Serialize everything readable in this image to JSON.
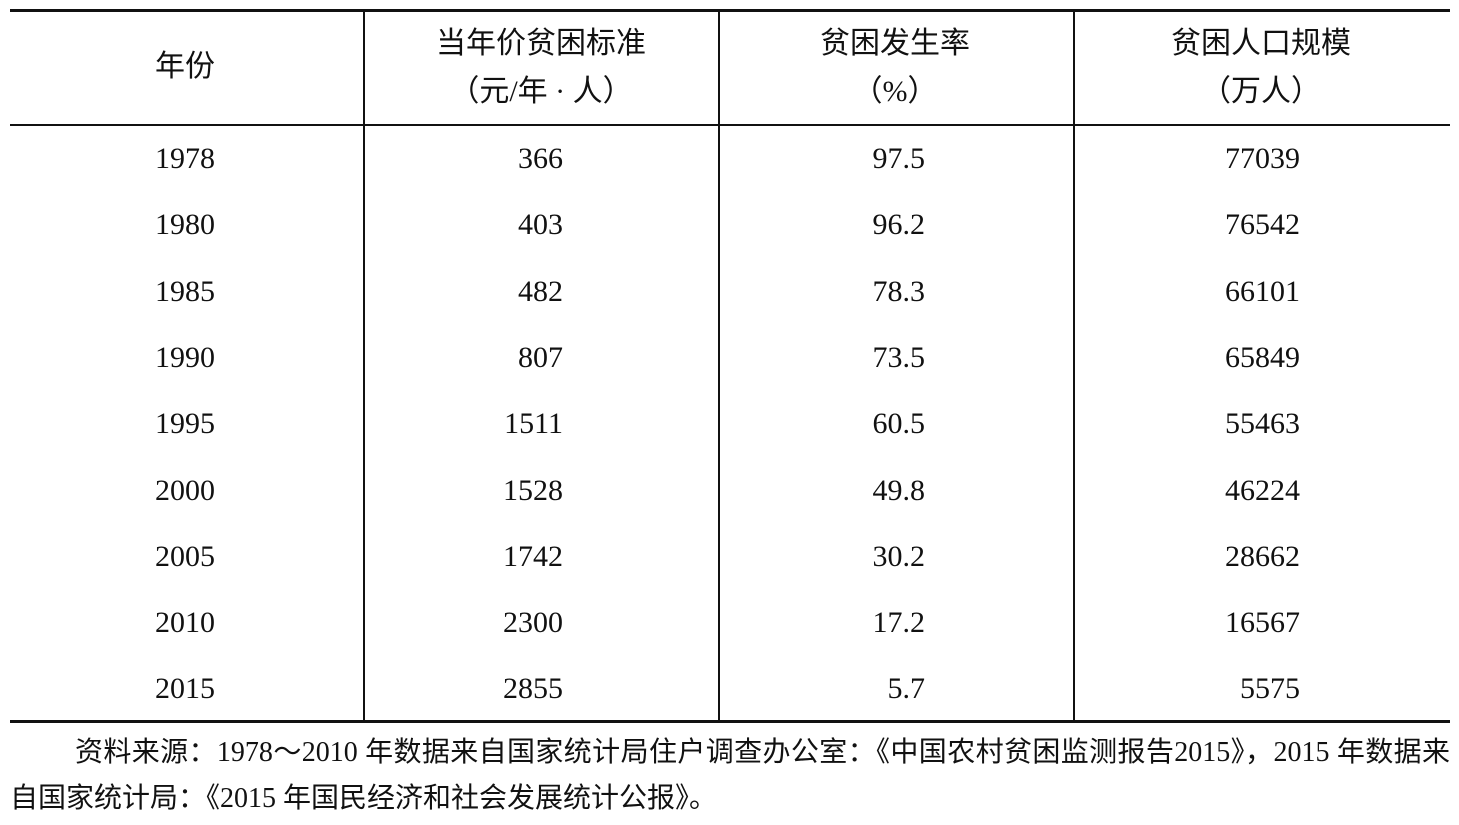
{
  "table": {
    "header": [
      [
        "年份"
      ],
      [
        "当年价贫困标准",
        "（元/年 · 人）"
      ],
      [
        "贫困发生率",
        "（%）"
      ],
      [
        "贫困人口规模",
        "（万人）"
      ]
    ],
    "rows": [
      [
        1978,
        366,
        97.5,
        77039
      ],
      [
        1980,
        403,
        96.2,
        76542
      ],
      [
        1985,
        482,
        78.3,
        66101
      ],
      [
        1990,
        807,
        73.5,
        65849
      ],
      [
        1995,
        1511,
        60.5,
        55463
      ],
      [
        2000,
        1528,
        49.8,
        46224
      ],
      [
        2005,
        1742,
        30.2,
        28662
      ],
      [
        2010,
        2300,
        17.2,
        16567
      ],
      [
        2015,
        2855,
        5.7,
        5575
      ]
    ]
  },
  "note": "资料来源：1978～2010 年数据来自国家统计局住户调查办公室：《中国农村贫困监测报告2015》，2015 年数据来自国家统计局：《2015 年国民经济和社会发展统计公报》。"
}
